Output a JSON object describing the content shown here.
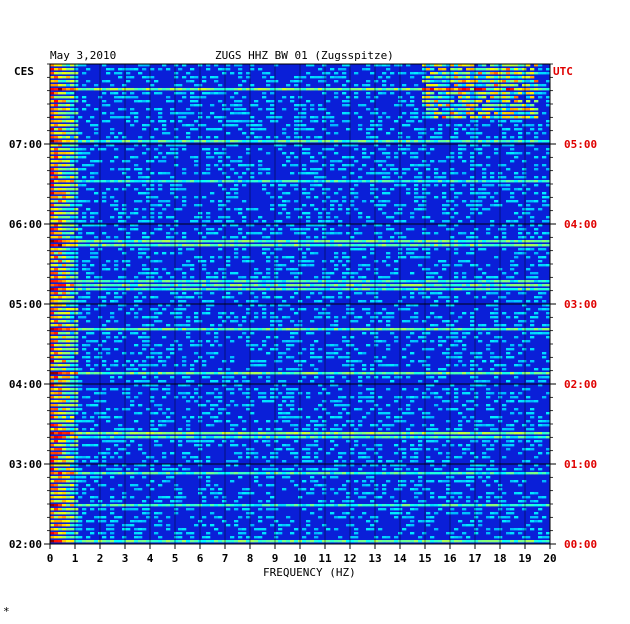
{
  "header": {
    "date": "May 3,2010",
    "station": "ZUGS HHZ BW 01 (Zugsspitze)"
  },
  "footer_mark": "*",
  "colors": {
    "background_blue": "#0a1fd8",
    "utc_label": "#e00000",
    "grid": "#000000",
    "text": "#000000"
  },
  "chart_data": {
    "type": "heatmap",
    "title": "ZUGS HHZ BW 01 (Zugsspitze)",
    "xlabel": "FREQUENCY (HZ)",
    "x_ticks": [
      "0",
      "1",
      "2",
      "3",
      "4",
      "5",
      "6",
      "7",
      "8",
      "9",
      "10",
      "11",
      "12",
      "13",
      "14",
      "15",
      "16",
      "17",
      "18",
      "19",
      "20"
    ],
    "xlim": [
      0,
      20
    ],
    "left_axis_label": "CES",
    "right_axis_label": "UTC",
    "left_time_ticks": [
      "07:00",
      "06:00",
      "05:00",
      "04:00",
      "03:00",
      "02:00"
    ],
    "right_time_ticks": [
      "05:00",
      "04:00",
      "03:00",
      "02:00",
      "01:00",
      "00:00"
    ],
    "time_range_utc": [
      "00:00",
      "06:00"
    ],
    "colormap": "jet",
    "notes_visible": "high energy concentrated below ~1 Hz; bright bursts near 15-19 Hz at top"
  }
}
